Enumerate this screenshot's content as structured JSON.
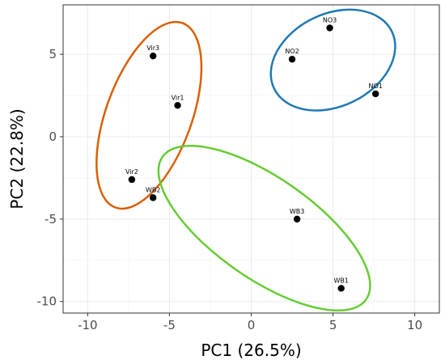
{
  "chart_data": {
    "type": "scatter",
    "xlabel": "PC1 (26.5%)",
    "ylabel": "PC2 (22.8%)",
    "xlim": [
      -11.5,
      11.5
    ],
    "ylim": [
      -10.7,
      8.0
    ],
    "x_ticks": [
      -10,
      -5,
      0,
      5,
      10
    ],
    "y_ticks": [
      -10,
      -5,
      0,
      5
    ],
    "grid": true,
    "points": [
      {
        "label": "NO3",
        "x": 4.8,
        "y": 6.6
      },
      {
        "label": "NO2",
        "x": 2.5,
        "y": 4.7
      },
      {
        "label": "NO1",
        "x": 7.6,
        "y": 2.6
      },
      {
        "label": "Vir3",
        "x": -6.0,
        "y": 4.9
      },
      {
        "label": "Vir1",
        "x": -4.5,
        "y": 1.9
      },
      {
        "label": "Vir2",
        "x": -7.3,
        "y": -2.6
      },
      {
        "label": "WB2",
        "x": -6.0,
        "y": -3.7
      },
      {
        "label": "WB3",
        "x": 2.8,
        "y": -5.0
      },
      {
        "label": "WB1",
        "x": 5.5,
        "y": -9.2
      }
    ],
    "groups": [
      {
        "name": "NO",
        "color": "#1f78b4",
        "cx": 5.0,
        "cy": 4.65,
        "rx": 4.0,
        "ry": 2.8,
        "angle": -26
      },
      {
        "name": "Vir",
        "color": "#d95f02",
        "cx": -6.25,
        "cy": 1.3,
        "rx": 6.0,
        "ry": 2.6,
        "angle": -70
      },
      {
        "name": "WB",
        "color": "#66cc33",
        "cx": 0.8,
        "cy": -5.55,
        "rx": 7.6,
        "ry": 3.05,
        "angle": 35
      }
    ]
  }
}
